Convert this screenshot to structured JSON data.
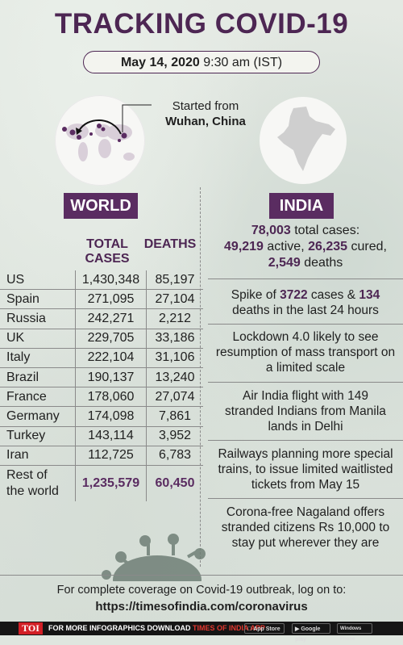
{
  "title": "TRACKING COVID-19",
  "date": {
    "bold": "May 14, 2020",
    "rest": "9:30 am (IST)"
  },
  "origin": {
    "line1": "Started from",
    "line2": "Wuhan, China"
  },
  "world": {
    "label": "WORLD",
    "headers": {
      "cases": "TOTAL CASES",
      "deaths": "DEATHS"
    },
    "rows": [
      {
        "country": "US",
        "cases": "1,430,348",
        "deaths": "85,197"
      },
      {
        "country": "Spain",
        "cases": "271,095",
        "deaths": "27,104"
      },
      {
        "country": "Russia",
        "cases": "242,271",
        "deaths": "2,212"
      },
      {
        "country": "UK",
        "cases": "229,705",
        "deaths": "33,186"
      },
      {
        "country": "Italy",
        "cases": "222,104",
        "deaths": "31,106"
      },
      {
        "country": "Brazil",
        "cases": "190,137",
        "deaths": "13,240"
      },
      {
        "country": "France",
        "cases": "178,060",
        "deaths": "27,074"
      },
      {
        "country": "Germany",
        "cases": "174,098",
        "deaths": "7,861"
      },
      {
        "country": "Turkey",
        "cases": "143,114",
        "deaths": "3,952"
      },
      {
        "country": "Iran",
        "cases": "112,725",
        "deaths": "6,783"
      }
    ],
    "rest": {
      "country_line1": "Rest of",
      "country_line2": "the world",
      "cases": "1,235,579",
      "deaths": "60,450"
    }
  },
  "india": {
    "label": "INDIA",
    "total_num": "78,003",
    "total_text": "total cases:",
    "active_num": "49,219",
    "active_text": "active,",
    "cured_num": "26,235",
    "cured_text": "cured,",
    "deaths_num": "2,549",
    "deaths_text": "deaths",
    "spike_pre": "Spike of",
    "spike_cases": "3722",
    "spike_mid": "cases &",
    "spike_deaths": "134",
    "spike_post": "deaths in the last 24 hours",
    "news": [
      "Lockdown 4.0 likely to see resumption of mass transport on a limited scale",
      "Air India flight with 149 stranded Indians from Manila lands in Delhi",
      "Railways planning more special trains, to issue limited waitlisted tickets from May 15",
      "Corona-free Nagaland offers stranded citizens Rs 10,000 to stay put wherever they are"
    ]
  },
  "footer": {
    "line1": "For complete coverage on Covid-19 outbreak, log on to:",
    "url": "https://timesofindia.com/coronavirus"
  },
  "bottom_bar": {
    "logo": "TOI",
    "text_white": "FOR MORE  INFOGRAPHICS DOWNLOAD",
    "text_red": "TIMES OF INDIA  APP",
    "app_store": "App Store",
    "google_play": "Google play",
    "windows": "Windows Phone"
  },
  "colors": {
    "accent": "#4d2653",
    "label_bg": "#5a2c61",
    "toi_red": "#d21f26"
  }
}
